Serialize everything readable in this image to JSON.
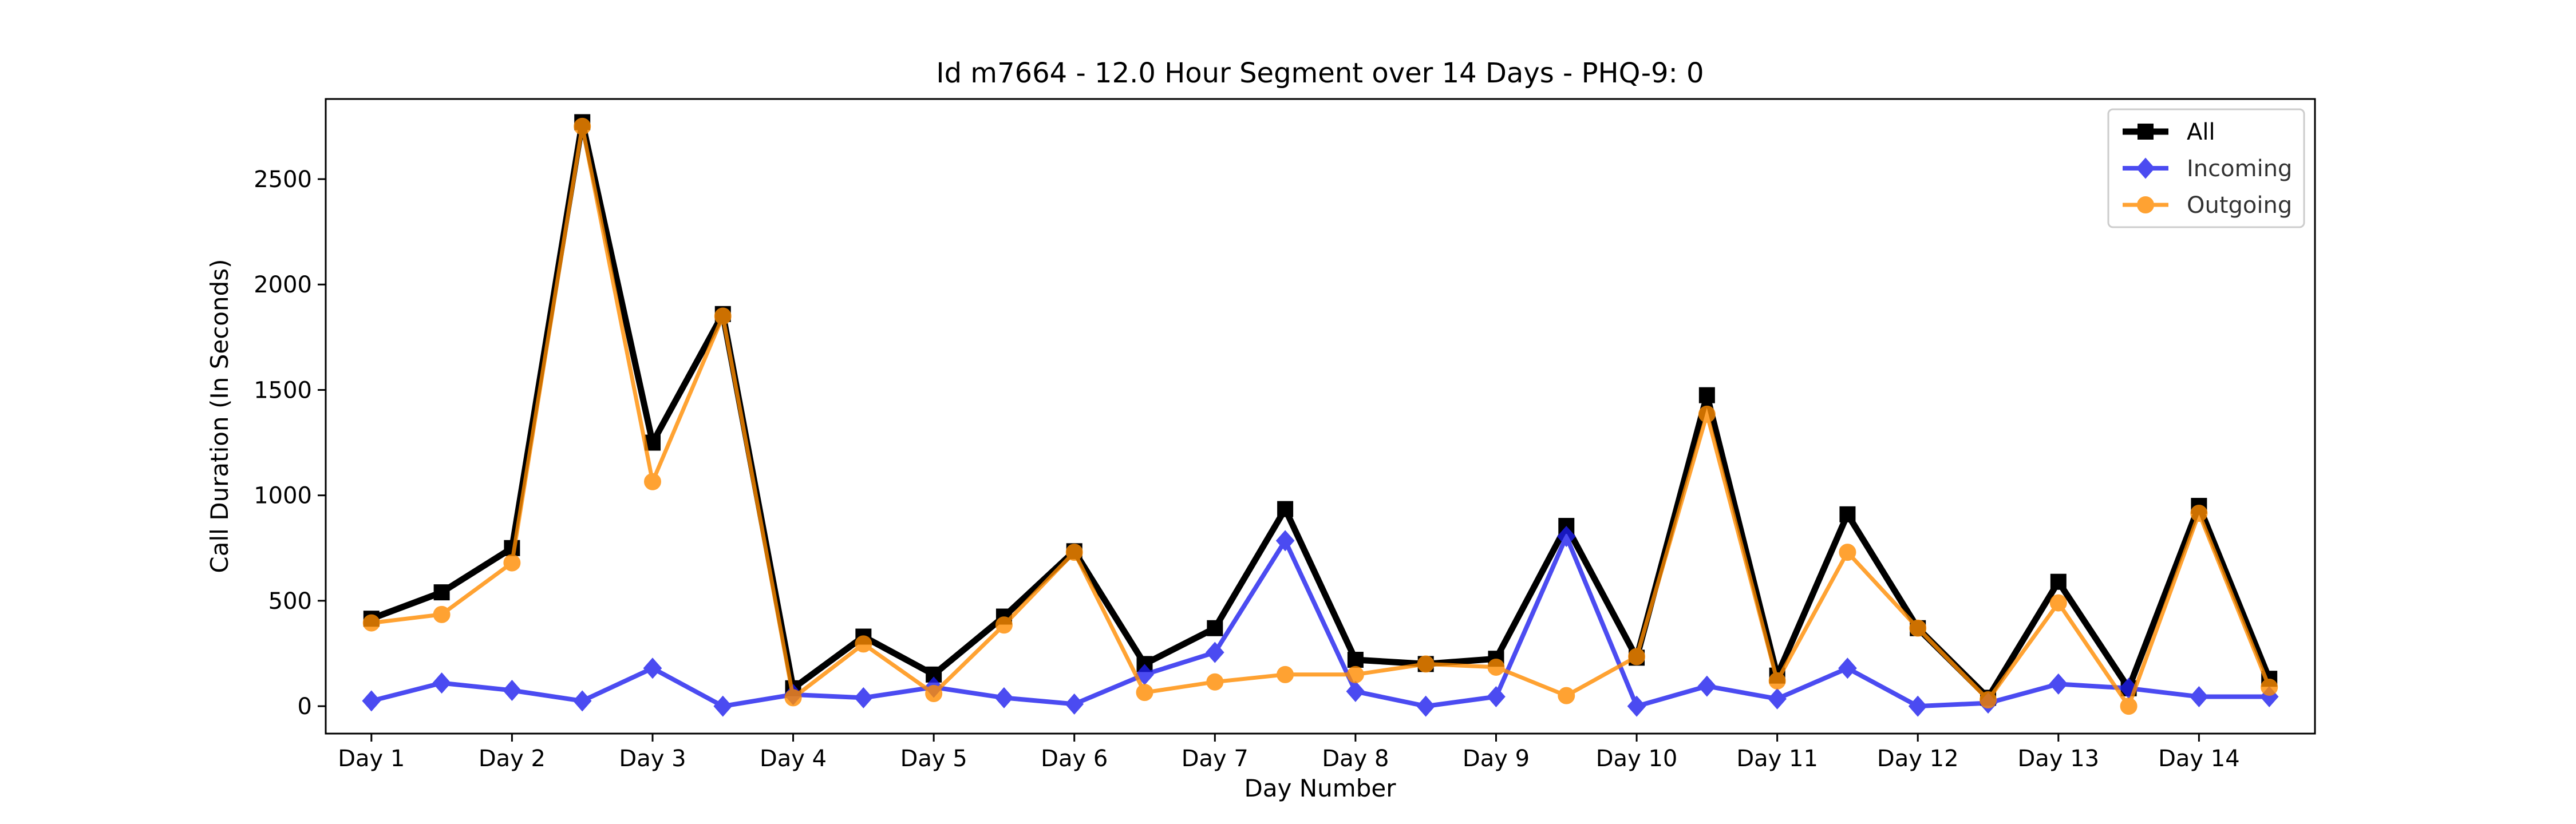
{
  "chart_data": {
    "type": "line",
    "title": "Id m7664 - 12.0 Hour Segment over 14 Days - PHQ-9: 0",
    "xlabel": "Day Number",
    "ylabel": "Call Duration (In Seconds)",
    "x": [
      0,
      1,
      2,
      3,
      4,
      5,
      6,
      7,
      8,
      9,
      10,
      11,
      12,
      13,
      14,
      15,
      16,
      17,
      18,
      19,
      20,
      21,
      22,
      23,
      24,
      25,
      26,
      27
    ],
    "xlim": [
      -0.65,
      27.65
    ],
    "ylim": [
      -130,
      2880
    ],
    "xticks": [
      0,
      2,
      4,
      6,
      8,
      10,
      12,
      14,
      16,
      18,
      20,
      22,
      24,
      26
    ],
    "xtick_labels": [
      "Day 1",
      "Day 2",
      "Day 3",
      "Day 4",
      "Day 5",
      "Day 6",
      "Day 7",
      "Day 8",
      "Day 9",
      "Day 10",
      "Day 11",
      "Day 12",
      "Day 13",
      "Day 14"
    ],
    "yticks": [
      0,
      500,
      1000,
      1500,
      2000,
      2500
    ],
    "ytick_labels": [
      "0",
      "500",
      "1000",
      "1500",
      "2000",
      "2500"
    ],
    "grid": false,
    "legend_position": "top-right",
    "series": [
      {
        "name": "All",
        "color": "#000000",
        "marker": "square",
        "values": [
          415,
          540,
          750,
          2770,
          1250,
          1860,
          85,
          330,
          150,
          425,
          735,
          200,
          370,
          935,
          220,
          200,
          225,
          855,
          230,
          1475,
          145,
          910,
          370,
          40,
          590,
          85,
          950,
          130
        ]
      },
      {
        "name": "Incoming",
        "color": "#1f1fee",
        "marker": "diamond",
        "values": [
          25,
          110,
          75,
          25,
          180,
          0,
          55,
          40,
          90,
          40,
          10,
          150,
          255,
          785,
          70,
          0,
          45,
          805,
          0,
          95,
          35,
          180,
          0,
          15,
          105,
          85,
          45,
          45
        ]
      },
      {
        "name": "Outgoing",
        "color": "#ff8c00",
        "marker": "circle",
        "values": [
          395,
          435,
          680,
          2750,
          1065,
          1850,
          40,
          295,
          60,
          385,
          730,
          65,
          115,
          150,
          150,
          200,
          185,
          50,
          235,
          1385,
          120,
          730,
          370,
          30,
          490,
          0,
          915,
          90
        ]
      }
    ]
  }
}
